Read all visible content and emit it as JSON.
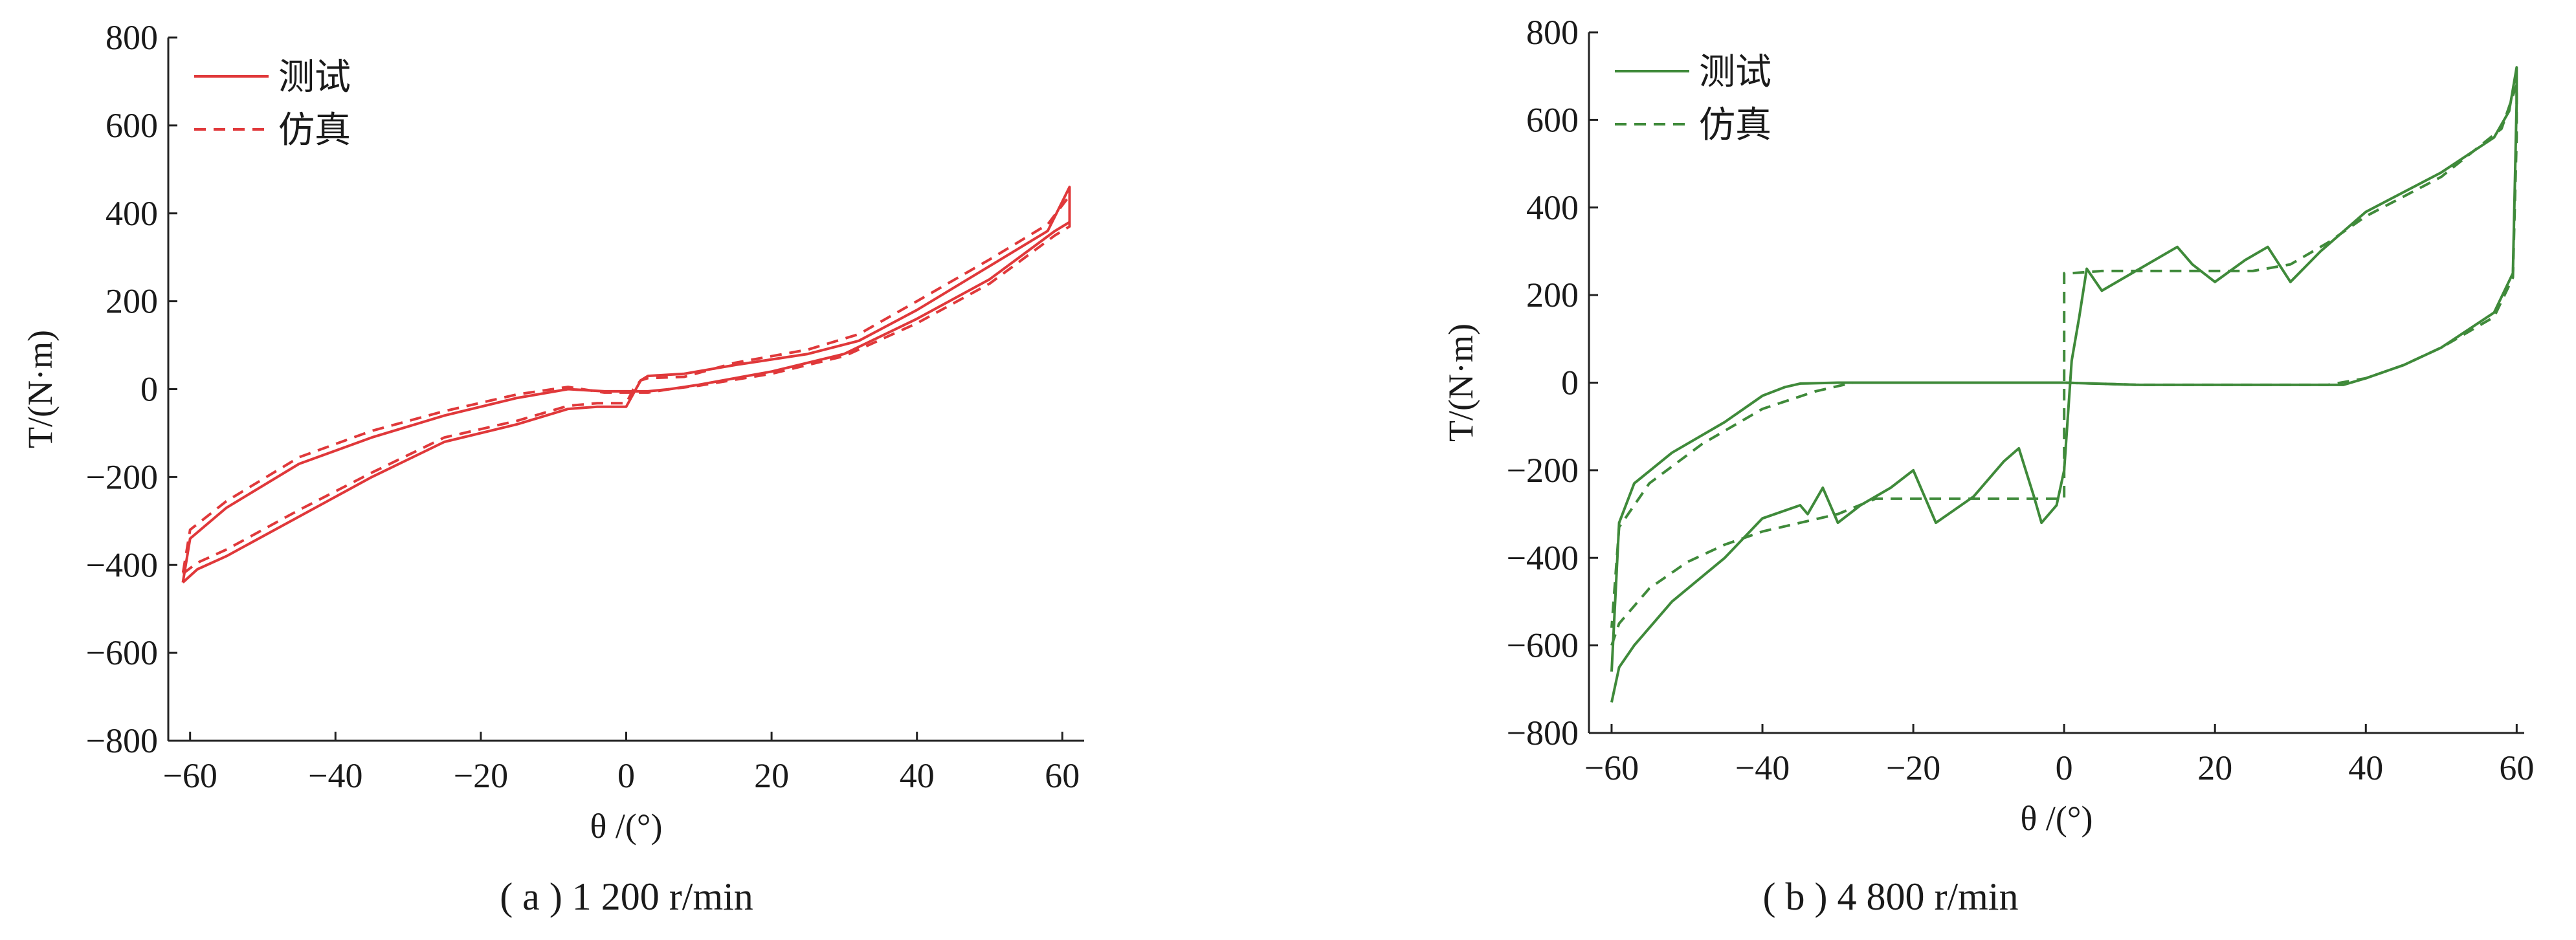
{
  "chart_data": [
    {
      "type": "line",
      "caption": "( a ) 1 200 r/min",
      "xlabel": "θ /(°)",
      "ylabel": "T/(N·m)",
      "xlim": [
        -63,
        63
      ],
      "ylim": [
        -800,
        800
      ],
      "xticks": [
        -60,
        -40,
        -20,
        0,
        20,
        40,
        60
      ],
      "yticks": [
        -800,
        -600,
        -400,
        -200,
        0,
        200,
        400,
        600,
        800
      ],
      "legend": "top-left",
      "color": "#e0383a",
      "series": [
        {
          "name": "测试",
          "style": "solid",
          "x": [
            -61,
            -59,
            -55,
            -45,
            -35,
            -25,
            -15,
            -8,
            -4,
            0,
            1,
            2,
            3,
            8,
            15,
            25,
            32,
            40,
            50,
            58,
            61,
            61,
            59,
            50,
            40,
            30,
            20,
            10,
            6,
            3,
            0,
            -3,
            -8,
            -15,
            -25,
            -35,
            -45,
            -55,
            -60,
            -61
          ],
          "y": [
            -440,
            -410,
            -380,
            -290,
            -200,
            -120,
            -80,
            -45,
            -40,
            -40,
            -10,
            20,
            30,
            35,
            55,
            80,
            110,
            180,
            280,
            360,
            460,
            380,
            360,
            250,
            160,
            80,
            40,
            10,
            0,
            -5,
            -5,
            -5,
            0,
            -20,
            -60,
            -110,
            -170,
            -270,
            -340,
            -440
          ]
        },
        {
          "name": "仿真",
          "style": "dashed",
          "x": [
            -61,
            -59,
            -55,
            -45,
            -35,
            -25,
            -15,
            -8,
            -4,
            0,
            1,
            2,
            3,
            8,
            15,
            25,
            32,
            40,
            50,
            58,
            61,
            61,
            59,
            50,
            40,
            30,
            20,
            10,
            6,
            3,
            0,
            -3,
            -8,
            -15,
            -25,
            -35,
            -45,
            -55,
            -60,
            -61
          ],
          "y": [
            -420,
            -395,
            -365,
            -275,
            -190,
            -110,
            -72,
            -38,
            -32,
            -32,
            0,
            20,
            25,
            28,
            60,
            90,
            125,
            200,
            295,
            375,
            440,
            370,
            350,
            240,
            150,
            75,
            35,
            8,
            0,
            -8,
            -8,
            -8,
            5,
            -12,
            -50,
            -95,
            -155,
            -255,
            -320,
            -420
          ]
        }
      ]
    },
    {
      "type": "line",
      "caption": "( b ) 4 800 r/min",
      "xlabel": "θ /(°)",
      "ylabel": "T/(N·m)",
      "xlim": [
        -63,
        61
      ],
      "ylim": [
        -800,
        800
      ],
      "xticks": [
        -60,
        -40,
        -20,
        0,
        20,
        40,
        60
      ],
      "yticks": [
        -800,
        -600,
        -400,
        -200,
        0,
        200,
        400,
        600,
        800
      ],
      "legend": "top-left",
      "color": "#3f8a3a",
      "series": [
        {
          "name": "测试",
          "style": "solid",
          "x": [
            -60,
            -59,
            -57,
            -52,
            -45,
            -40,
            -35,
            -34,
            -32,
            -30,
            -27,
            -23,
            -20,
            -17,
            -12,
            -8,
            -6,
            -4,
            -3,
            -1,
            0,
            1,
            2,
            3,
            5,
            8,
            12,
            15,
            17,
            20,
            24,
            27,
            30,
            34,
            40,
            50,
            57,
            59,
            60,
            60,
            59.5,
            57,
            50,
            45,
            40,
            37,
            30,
            20,
            10,
            0,
            -10,
            -20,
            -30,
            -35,
            -37,
            -40,
            -45,
            -52,
            -57,
            -59,
            -60
          ],
          "y": [
            -730,
            -650,
            -600,
            -500,
            -400,
            -310,
            -280,
            -300,
            -240,
            -320,
            -280,
            -240,
            -200,
            -320,
            -260,
            -180,
            -150,
            -260,
            -320,
            -280,
            -200,
            50,
            150,
            260,
            210,
            240,
            280,
            310,
            270,
            230,
            280,
            310,
            230,
            300,
            390,
            480,
            560,
            620,
            720,
            640,
            250,
            160,
            80,
            40,
            10,
            -5,
            -5,
            -5,
            -5,
            0,
            0,
            0,
            0,
            -2,
            -10,
            -30,
            -90,
            -160,
            -230,
            -320,
            -660
          ]
        },
        {
          "name": "仿真",
          "style": "dashed",
          "x": [
            -60,
            -59,
            -55,
            -50,
            -45,
            -40,
            -35,
            -30,
            -25,
            -15,
            -5,
            -1,
            0,
            0,
            1,
            5,
            15,
            25,
            30,
            35,
            40,
            50,
            58,
            60,
            60,
            59.5,
            57,
            50,
            45,
            40,
            35,
            30,
            20,
            10,
            0,
            -10,
            -20,
            -28,
            -33,
            -40,
            -48,
            -55,
            -59,
            -60
          ],
          "y": [
            -600,
            -550,
            -470,
            -410,
            -370,
            -340,
            -320,
            -300,
            -265,
            -265,
            -265,
            -265,
            -265,
            250,
            250,
            255,
            255,
            255,
            270,
            320,
            380,
            470,
            580,
            680,
            560,
            240,
            150,
            80,
            40,
            10,
            -5,
            -5,
            -5,
            -5,
            0,
            0,
            0,
            0,
            -20,
            -60,
            -140,
            -230,
            -330,
            -560
          ]
        }
      ]
    }
  ]
}
